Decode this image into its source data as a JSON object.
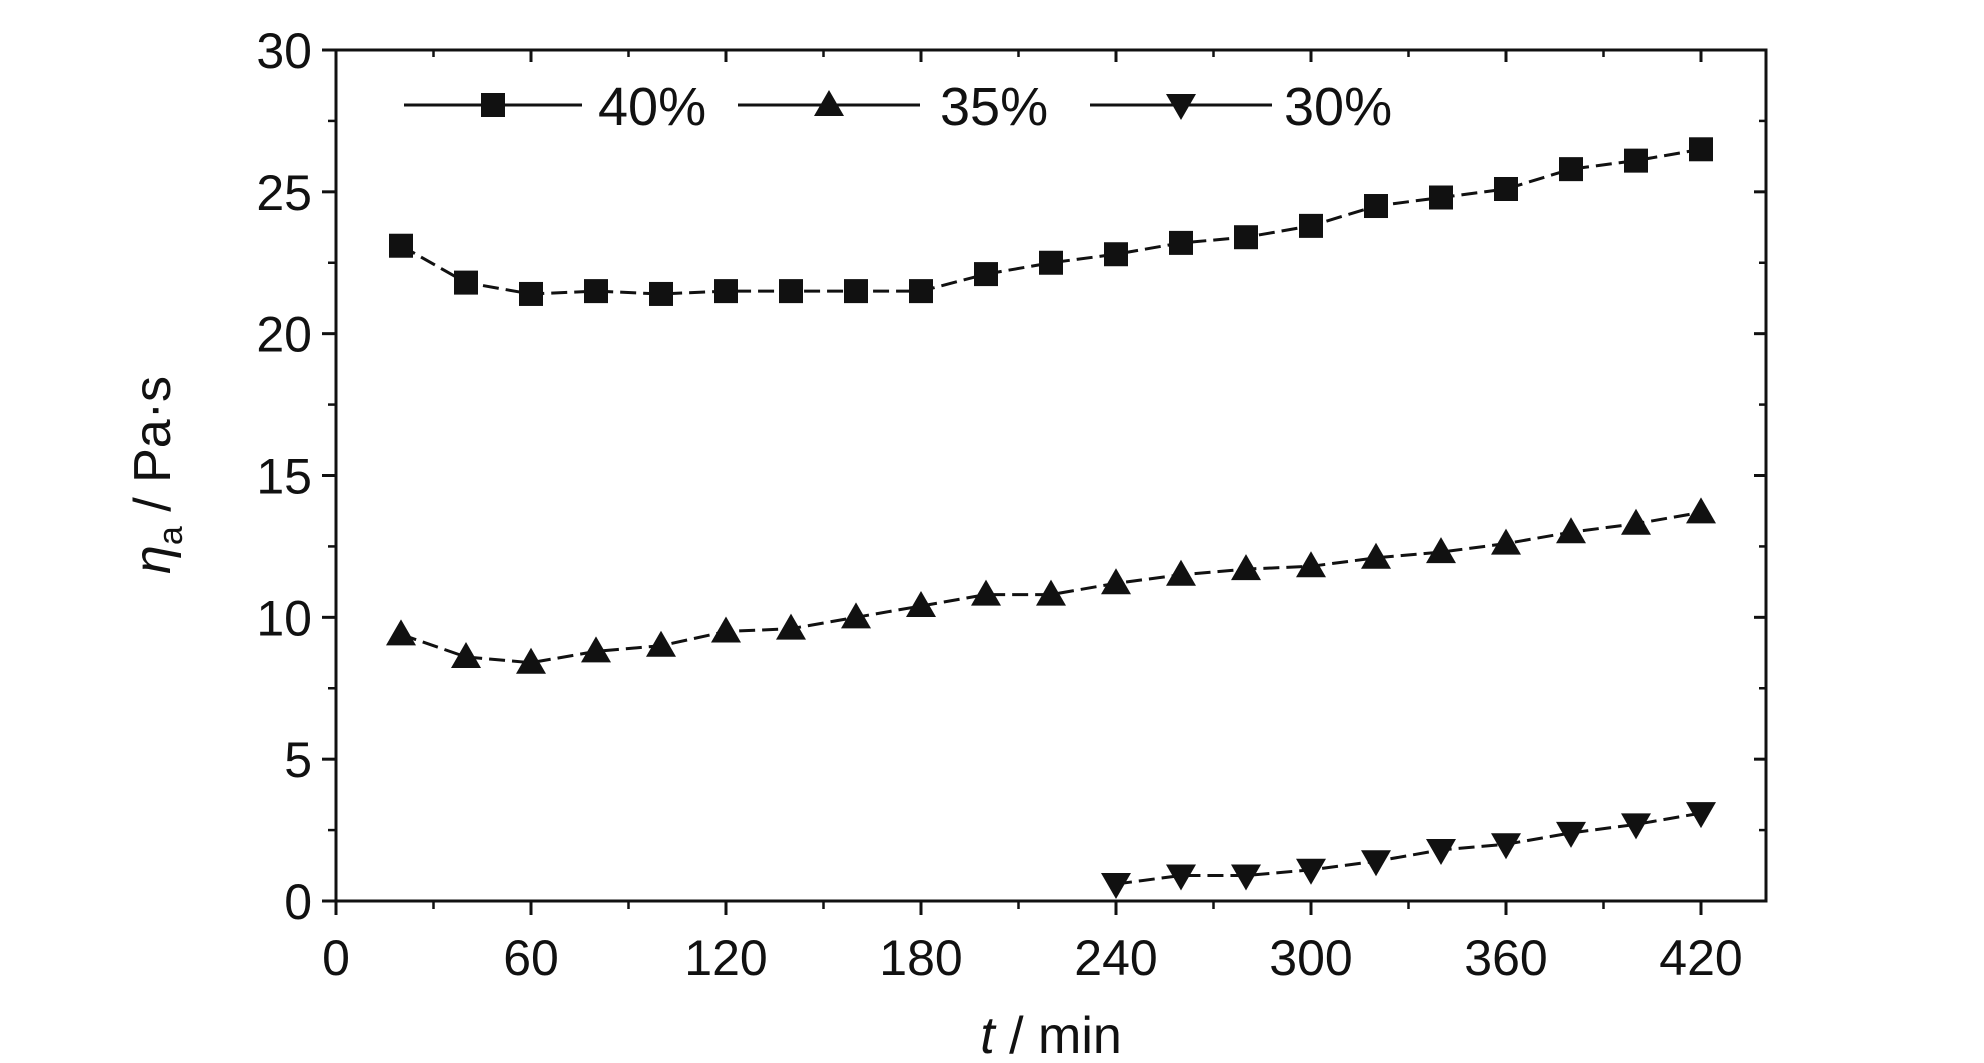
{
  "chart_data": {
    "type": "line",
    "title": "",
    "xlabel": {
      "var": "t",
      "unit": " / min"
    },
    "ylabel": {
      "var": "η",
      "sub": "a",
      "unit": " / Pa·s"
    },
    "xlim": [
      0,
      440
    ],
    "ylim": [
      0,
      30
    ],
    "xticks": [
      0,
      60,
      120,
      180,
      240,
      300,
      360,
      420
    ],
    "yticks": [
      0,
      5,
      10,
      15,
      20,
      25,
      30
    ],
    "x_minor_step": 30,
    "y_minor_step": 2.5,
    "grid": false,
    "legend": {
      "position": "top-left",
      "orientation": "horizontal"
    },
    "line_color": "#111111",
    "series": [
      {
        "name": "40%",
        "marker": "square",
        "x": [
          20,
          40,
          60,
          80,
          100,
          120,
          140,
          160,
          180,
          200,
          220,
          240,
          260,
          280,
          300,
          320,
          340,
          360,
          380,
          400,
          420
        ],
        "values": [
          23.1,
          21.8,
          21.4,
          21.5,
          21.4,
          21.5,
          21.5,
          21.5,
          21.5,
          22.1,
          22.5,
          22.8,
          23.2,
          23.4,
          23.8,
          24.5,
          24.8,
          25.1,
          25.8,
          26.1,
          26.5
        ]
      },
      {
        "name": "35%",
        "marker": "triangle-up",
        "x": [
          20,
          40,
          60,
          80,
          100,
          120,
          140,
          160,
          180,
          200,
          220,
          240,
          260,
          280,
          300,
          320,
          340,
          360,
          380,
          400,
          420
        ],
        "values": [
          9.4,
          8.6,
          8.4,
          8.8,
          9.0,
          9.5,
          9.6,
          10.0,
          10.4,
          10.8,
          10.8,
          11.2,
          11.5,
          11.7,
          11.8,
          12.1,
          12.3,
          12.6,
          13.0,
          13.3,
          13.7
        ]
      },
      {
        "name": "30%",
        "marker": "triangle-down",
        "x": [
          240,
          260,
          280,
          300,
          320,
          340,
          360,
          380,
          400,
          420
        ],
        "values": [
          0.6,
          0.9,
          0.9,
          1.1,
          1.4,
          1.8,
          2.0,
          2.4,
          2.7,
          3.1
        ]
      }
    ]
  }
}
